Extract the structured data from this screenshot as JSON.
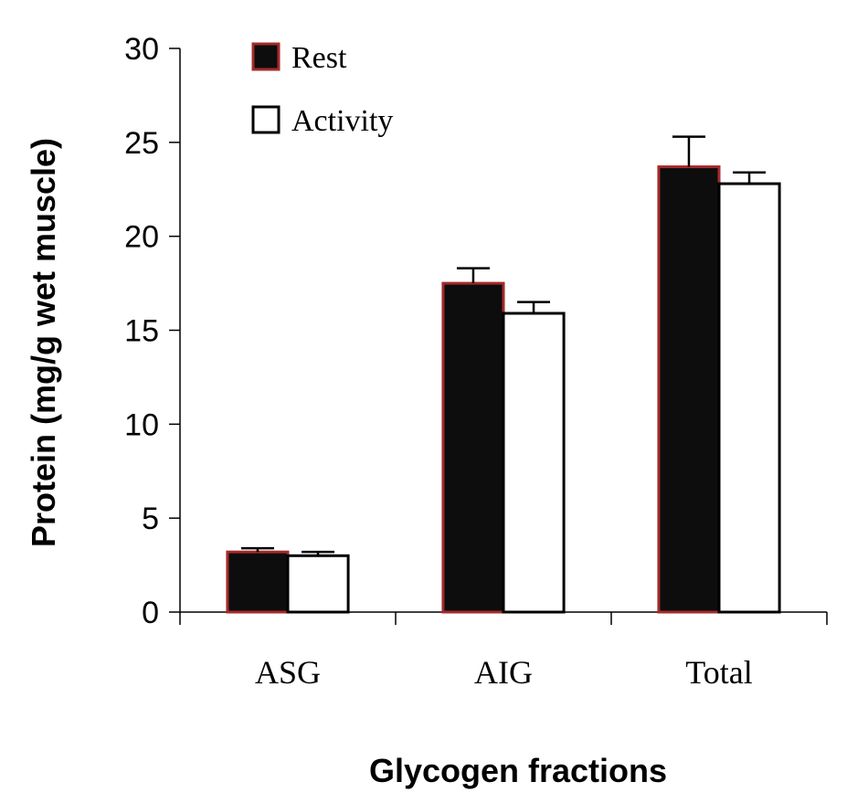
{
  "chart_data": {
    "type": "bar",
    "title": "",
    "xlabel": "Glycogen fractions",
    "ylabel": "Protein (mg/g wet muscle)",
    "categories": [
      "ASG",
      "AIG",
      "Total"
    ],
    "ylim": [
      0,
      30
    ],
    "yticks": [
      0,
      5,
      10,
      15,
      20,
      25,
      30
    ],
    "grid": false,
    "legend_position": "top-left",
    "series": [
      {
        "name": "Rest",
        "values": [
          3.2,
          17.5,
          23.7
        ],
        "errors": [
          0.2,
          0.8,
          1.6
        ],
        "fill": "#0d0d0d",
        "stroke": "#a52a2a"
      },
      {
        "name": "Activity",
        "values": [
          3.0,
          15.9,
          22.8
        ],
        "errors": [
          0.2,
          0.6,
          0.6
        ],
        "fill": "#ffffff",
        "stroke": "#000000"
      }
    ]
  }
}
